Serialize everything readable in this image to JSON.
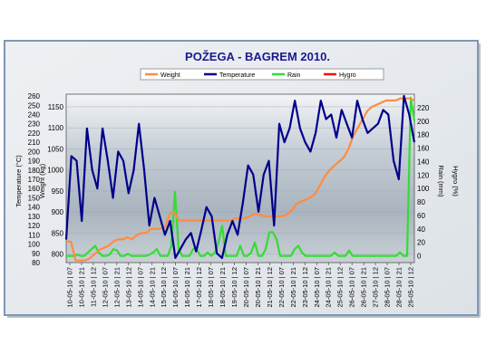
{
  "chart_data": {
    "type": "line",
    "title": "POŽEGA - BAGREM 2010.",
    "x_tick_labels": [
      "10-05-10 | 07",
      "10-05-10 | 21",
      "11-05-10 | 12",
      "12-05-10 | 07",
      "12-05-10 | 21",
      "13-05-10 | 12",
      "14-05-10 | 07",
      "14-05-10 | 21",
      "15-05-10 | 12",
      "16-05-10 | 07",
      "16-05-10 | 21",
      "17-05-10 | 12",
      "18-05-10 | 07",
      "18-05-10 | 21",
      "19-05-10 | 12",
      "20-05-10 | 07",
      "20-05-10 | 21",
      "21-05-10 | 12",
      "22-05-10 | 07",
      "22-05-10 | 21",
      "23-05-10 | 12",
      "24-05-10 | 07",
      "24-05-10 | 21",
      "25-05-10 | 12",
      "26-05-10 | 07",
      "26-05-10 | 21",
      "27-05-10 | 12",
      "28-05-10 | 07",
      "28-05-10 | 21",
      "29-05-10 | 12"
    ],
    "axes": {
      "temperature": {
        "label": "Temperature (°C)",
        "ticks": [
          80,
          90,
          100,
          110,
          120,
          130,
          140,
          150,
          160,
          170,
          180,
          190,
          200,
          210,
          220,
          230,
          240,
          250,
          260
        ],
        "ylim": [
          80,
          262
        ]
      },
      "weight": {
        "label": "Weight (kg)",
        "ticks": [
          800,
          850,
          900,
          950,
          1000,
          1050,
          1100,
          1150
        ],
        "ylim": [
          780,
          1180
        ]
      },
      "rain": {
        "label": "Rain (mm)",
        "ticks": [
          0,
          20,
          40,
          60,
          80,
          100,
          120,
          140,
          160,
          180,
          200,
          220
        ],
        "ylim": [
          -10,
          240
        ]
      },
      "hygro": {
        "label": "Hygro (%)"
      }
    },
    "legend_position": "top",
    "series": [
      {
        "name": "Weight",
        "color": "#ff8c40",
        "axis": "weight",
        "values": [
          830,
          830,
          785,
          785,
          785,
          790,
          800,
          810,
          815,
          820,
          830,
          835,
          835,
          840,
          835,
          845,
          850,
          850,
          860,
          860,
          860,
          865,
          895,
          900,
          880,
          880,
          880,
          880,
          880,
          880,
          880,
          880,
          880,
          880,
          880,
          880,
          885,
          885,
          885,
          890,
          895,
          895,
          890,
          890,
          890,
          890,
          890,
          895,
          905,
          920,
          925,
          930,
          935,
          945,
          965,
          985,
          1000,
          1010,
          1020,
          1030,
          1050,
          1080,
          1100,
          1120,
          1140,
          1150,
          1155,
          1160,
          1165,
          1165,
          1165,
          1170,
          1170,
          1170,
          1165
        ]
      },
      {
        "name": "Temperature",
        "color": "#00008b",
        "axis": "temperature",
        "values": [
          105,
          195,
          190,
          125,
          225,
          180,
          160,
          225,
          190,
          150,
          200,
          190,
          155,
          180,
          230,
          180,
          120,
          150,
          130,
          110,
          125,
          85,
          95,
          105,
          112,
          92,
          115,
          140,
          130,
          90,
          85,
          110,
          125,
          110,
          145,
          185,
          175,
          135,
          175,
          190,
          120,
          230,
          210,
          225,
          255,
          225,
          210,
          200,
          220,
          255,
          235,
          240,
          215,
          245,
          230,
          215,
          255,
          235,
          220,
          225,
          230,
          245,
          240,
          190,
          170,
          260,
          240,
          210
        ]
      },
      {
        "name": "Rain",
        "color": "#33dd33",
        "axis": "rain",
        "values": [
          0,
          0,
          0,
          2,
          0,
          0,
          5,
          10,
          15,
          5,
          0,
          0,
          2,
          10,
          8,
          0,
          0,
          3,
          0,
          0,
          0,
          0,
          0,
          2,
          5,
          10,
          0,
          0,
          0,
          15,
          95,
          10,
          0,
          0,
          0,
          10,
          10,
          0,
          0,
          5,
          0,
          5,
          20,
          45,
          0,
          0,
          0,
          0,
          15,
          0,
          0,
          5,
          20,
          0,
          0,
          10,
          35,
          35,
          25,
          0,
          0,
          0,
          0,
          10,
          15,
          5,
          0,
          0,
          0,
          0,
          0,
          0,
          0,
          0,
          5,
          0,
          0,
          0,
          8,
          0,
          0,
          0,
          0,
          0,
          0,
          0,
          0,
          0,
          0,
          0,
          0,
          0,
          5,
          0,
          0,
          235,
          200
        ]
      },
      {
        "name": "Hygro",
        "color": "#ff0000",
        "axis": "hygro",
        "values": []
      }
    ]
  }
}
